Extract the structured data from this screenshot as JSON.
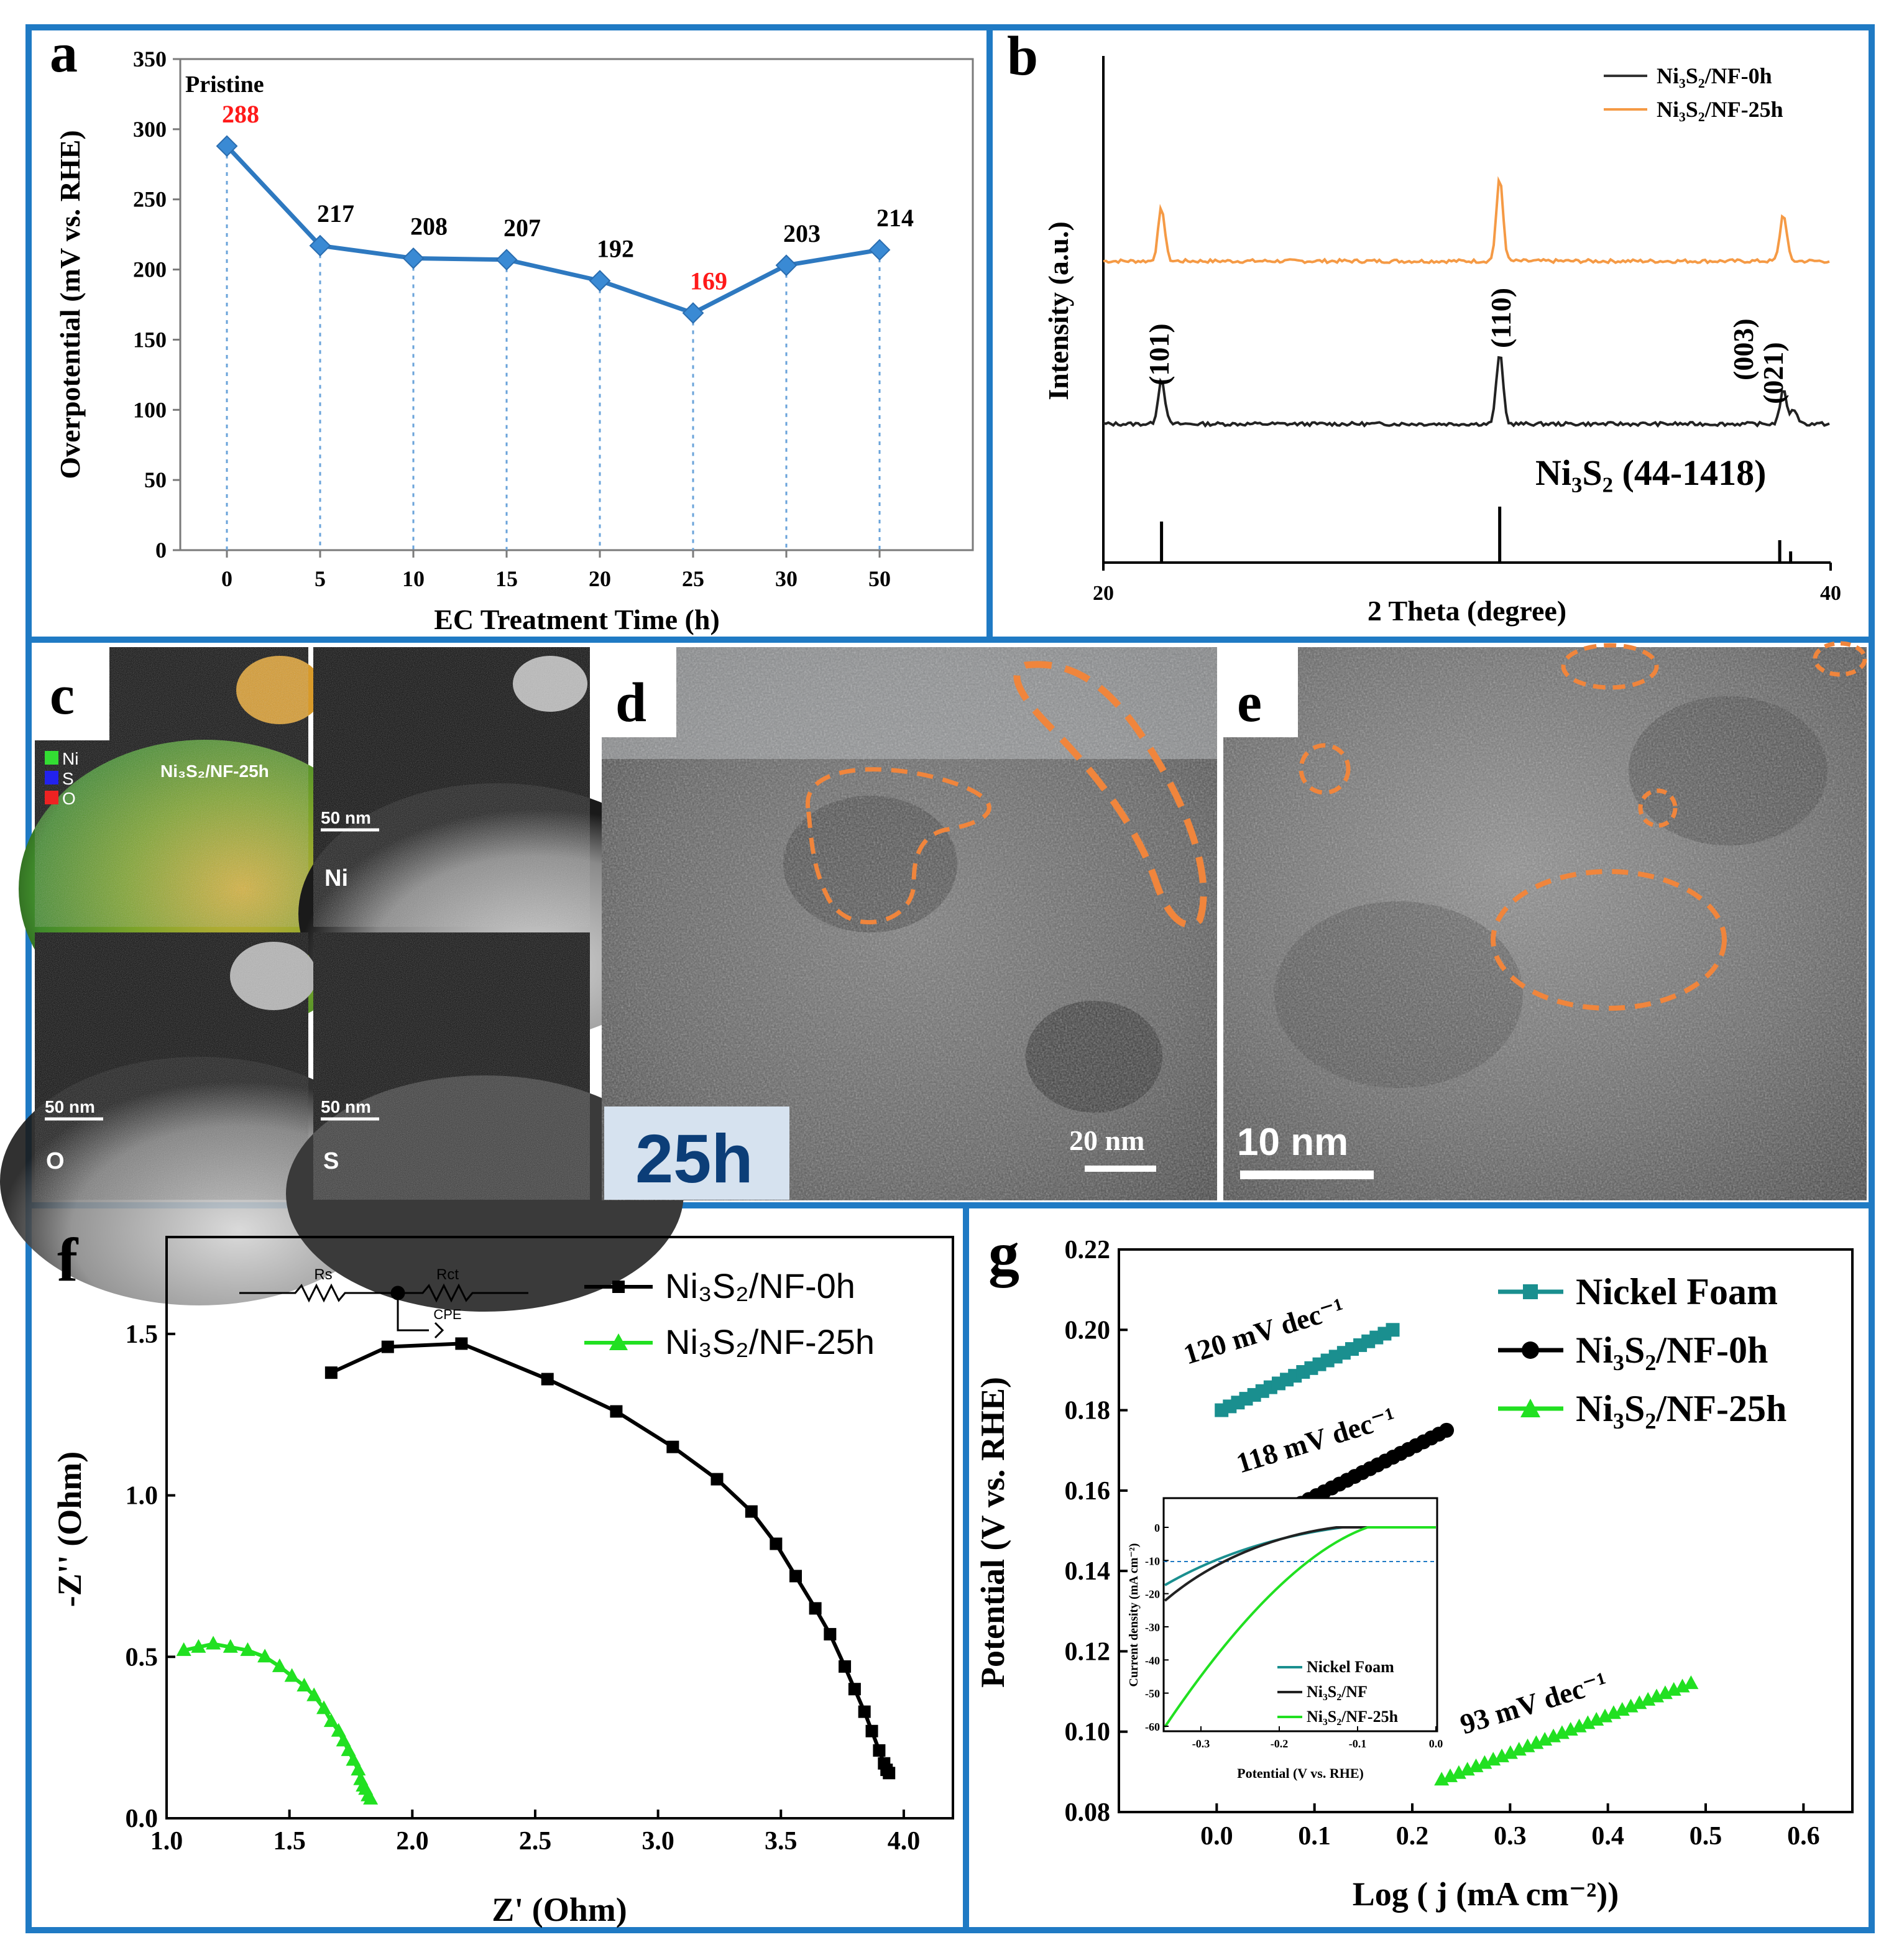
{
  "panels": {
    "a": "a",
    "b": "b",
    "c": "c",
    "d": "d",
    "e": "e",
    "f": "f",
    "g": "g"
  },
  "colors": {
    "frame": "#1f7ac4",
    "line_a": "#2e79c0",
    "marker_a": "#3a8ad4",
    "highlight": "#ff1a1a",
    "orange": "#f0853c",
    "orange_line": "#f59a45",
    "green": "#21e021",
    "teal": "#1a8f8f",
    "black": "#000000"
  },
  "chart_data": [
    {
      "panel": "a",
      "type": "line",
      "categories": [
        "0",
        "5",
        "10",
        "15",
        "20",
        "25",
        "30",
        "50"
      ],
      "values": [
        288,
        217,
        208,
        207,
        192,
        169,
        203,
        214
      ],
      "value_labels": [
        "288",
        "217",
        "208",
        "207",
        "192",
        "169",
        "203",
        "214"
      ],
      "highlighted_indices": [
        0,
        5
      ],
      "annotation": "Pristine",
      "xlabel": "EC Treatment Time (h)",
      "ylabel": "Overpotential (mV vs. RHE)",
      "ylim": [
        0,
        350
      ],
      "yticks": [
        "0",
        "50",
        "100",
        "150",
        "200",
        "250",
        "300",
        "350"
      ]
    },
    {
      "panel": "b",
      "type": "line",
      "xlabel": "2 Theta (degree)",
      "ylabel": "Intensity (a.u.)",
      "xlim": [
        20,
        40
      ],
      "xticks": [
        "20",
        "40"
      ],
      "series": [
        {
          "name": "Ni₃S₂/NF-0h",
          "peaks": [
            {
              "x": 21.6,
              "h": 0.38
            },
            {
              "x": 30.9,
              "h": 0.6
            },
            {
              "x": 38.7,
              "h": 0.28
            },
            {
              "x": 39.0,
              "h": 0.12
            }
          ]
        },
        {
          "name": "Ni₃S₂/NF-25h",
          "peaks": [
            {
              "x": 21.6,
              "h": 0.45
            },
            {
              "x": 30.9,
              "h": 0.7
            },
            {
              "x": 38.7,
              "h": 0.4
            }
          ]
        }
      ],
      "peak_labels": [
        "(101)",
        "(110)",
        "(003)",
        "(021)"
      ],
      "reference": {
        "label": "Ni₃S₂ (44-1418)",
        "lines": [
          {
            "x": 21.6,
            "h": 0.55
          },
          {
            "x": 30.9,
            "h": 0.75
          },
          {
            "x": 38.6,
            "h": 0.3
          },
          {
            "x": 38.9,
            "h": 0.15
          }
        ]
      }
    },
    {
      "panel": "f",
      "type": "scatter",
      "xlabel": "Z' (Ohm)",
      "ylabel": "-Z'' (Ohm)",
      "xlim": [
        1.0,
        4.2
      ],
      "ylim": [
        0.0,
        1.8
      ],
      "xticks": [
        "1.0",
        "1.5",
        "2.0",
        "2.5",
        "3.0",
        "3.5",
        "4.0"
      ],
      "yticks": [
        "0.0",
        "0.5",
        "1.0",
        "1.5"
      ],
      "circuit_labels": [
        "Rs",
        "Rct",
        "CPE"
      ],
      "series": [
        {
          "name": "Ni₃S₂/NF-0h",
          "x": [
            1.67,
            1.9,
            2.2,
            2.55,
            2.83,
            3.06,
            3.24,
            3.38,
            3.48,
            3.56,
            3.64,
            3.7,
            3.76,
            3.8,
            3.84,
            3.87,
            3.9,
            3.92,
            3.93,
            3.94
          ],
          "y": [
            1.38,
            1.46,
            1.47,
            1.36,
            1.26,
            1.15,
            1.05,
            0.95,
            0.85,
            0.75,
            0.65,
            0.57,
            0.47,
            0.4,
            0.33,
            0.27,
            0.21,
            0.17,
            0.15,
            0.14
          ]
        },
        {
          "name": "Ni₃S₂/NF-25h",
          "x": [
            1.07,
            1.13,
            1.19,
            1.26,
            1.33,
            1.4,
            1.46,
            1.51,
            1.56,
            1.6,
            1.64,
            1.67,
            1.7,
            1.72,
            1.74,
            1.76,
            1.78,
            1.79,
            1.8,
            1.81,
            1.82,
            1.83
          ],
          "y": [
            0.52,
            0.53,
            0.54,
            0.53,
            0.52,
            0.5,
            0.47,
            0.44,
            0.41,
            0.38,
            0.34,
            0.3,
            0.27,
            0.24,
            0.21,
            0.18,
            0.15,
            0.12,
            0.1,
            0.09,
            0.07,
            0.06
          ]
        }
      ]
    },
    {
      "panel": "g",
      "type": "scatter",
      "xlabel": "Log ( j (mA cm⁻²))",
      "ylabel": "Potential (V vs. RHE)",
      "xlim": [
        -0.1,
        0.65
      ],
      "ylim": [
        0.08,
        0.22
      ],
      "xticks": [
        "0.0",
        "0.1",
        "0.2",
        "0.3",
        "0.4",
        "0.5",
        "0.6"
      ],
      "yticks": [
        "0.08",
        "0.10",
        "0.12",
        "0.14",
        "0.16",
        "0.18",
        "0.20",
        "0.22"
      ],
      "series": [
        {
          "name": "Nickel Foam",
          "x_start": 0.005,
          "x_end": 0.18,
          "y_start": 0.18,
          "y_end": 0.2,
          "tafel": "120 mV dec⁻¹"
        },
        {
          "name": "Ni₃S₂/NF-0h",
          "x_start": 0.055,
          "x_end": 0.235,
          "y_start": 0.153,
          "y_end": 0.175,
          "tafel": "118 mV dec⁻¹"
        },
        {
          "name": "Ni₃S₂/NF-25h",
          "x_start": 0.23,
          "x_end": 0.485,
          "y_start": 0.088,
          "y_end": 0.112,
          "tafel": "93 mV dec⁻¹"
        }
      ],
      "inset": {
        "xlabel": "Potential (V vs. RHE)",
        "ylabel": "Current density (mA cm⁻²)",
        "xticks": [
          "-0.3",
          "-0.2",
          "-0.1",
          "0.0"
        ],
        "yticks": [
          "0",
          "-10",
          "-20",
          "-30",
          "-40",
          "-50",
          "-60"
        ],
        "legend": [
          "Nickel Foam",
          "Ni₃S₂/NF",
          "Ni₃S₂/NF-25h"
        ]
      }
    }
  ],
  "panel_c": {
    "labels": {
      "sample": "Ni₃S₂/NF-25h",
      "scale": "50 nm",
      "ni": "Ni",
      "o": "O",
      "s": "S"
    },
    "legend": [
      {
        "label": "Ni",
        "color": "#33dd33"
      },
      {
        "label": "S",
        "color": "#2222ee"
      },
      {
        "label": "O",
        "color": "#ee2222"
      }
    ]
  },
  "panel_d": {
    "time_label": "25h",
    "scale": "20 nm"
  },
  "panel_e": {
    "scale": "10 nm"
  }
}
